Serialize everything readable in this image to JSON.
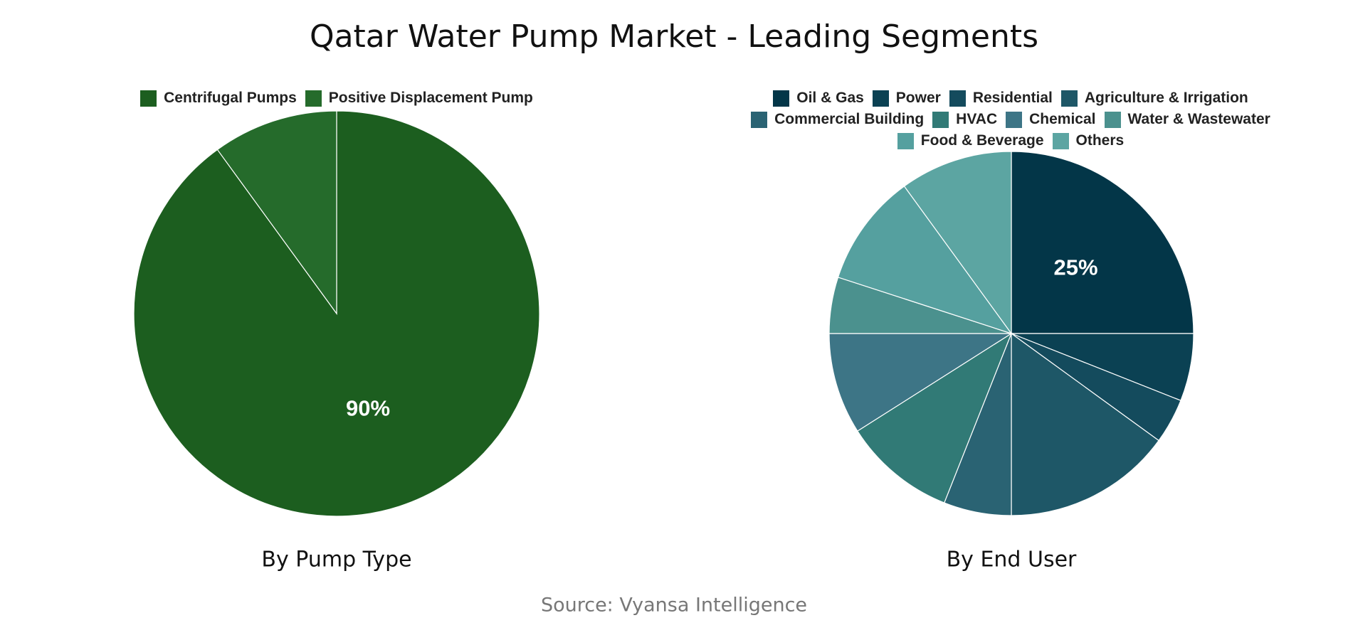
{
  "title": "Qatar Water Pump Market - Leading Segments",
  "source": "Source: Vyansa Intelligence",
  "chart_data": [
    {
      "type": "pie",
      "title": "By Pump Type",
      "categories": [
        "Centrifugal Pumps",
        "Positive Displacement Pump"
      ],
      "values": [
        90,
        10
      ],
      "value_labels": [
        "90%",
        null
      ],
      "colors": [
        "#1c5e1f",
        "#256b2b"
      ]
    },
    {
      "type": "pie",
      "title": "By End User",
      "categories": [
        "Oil & Gas",
        "Power",
        "Residential",
        "Agriculture & Irrigation",
        "Commercial Building",
        "HVAC",
        "Chemical",
        "Water & Wastewater",
        "Food & Beverage",
        "Others"
      ],
      "values": [
        25,
        6,
        4,
        15,
        6,
        10,
        9,
        5,
        10,
        10
      ],
      "value_labels": [
        "25%",
        null,
        null,
        null,
        null,
        null,
        null,
        null,
        null,
        null
      ],
      "colors": [
        "#033648",
        "#0b4153",
        "#144b5d",
        "#1e5767",
        "#2a6373",
        "#317a76",
        "#3d7586",
        "#4b918e",
        "#55a09f",
        "#5ca5a2"
      ]
    }
  ]
}
